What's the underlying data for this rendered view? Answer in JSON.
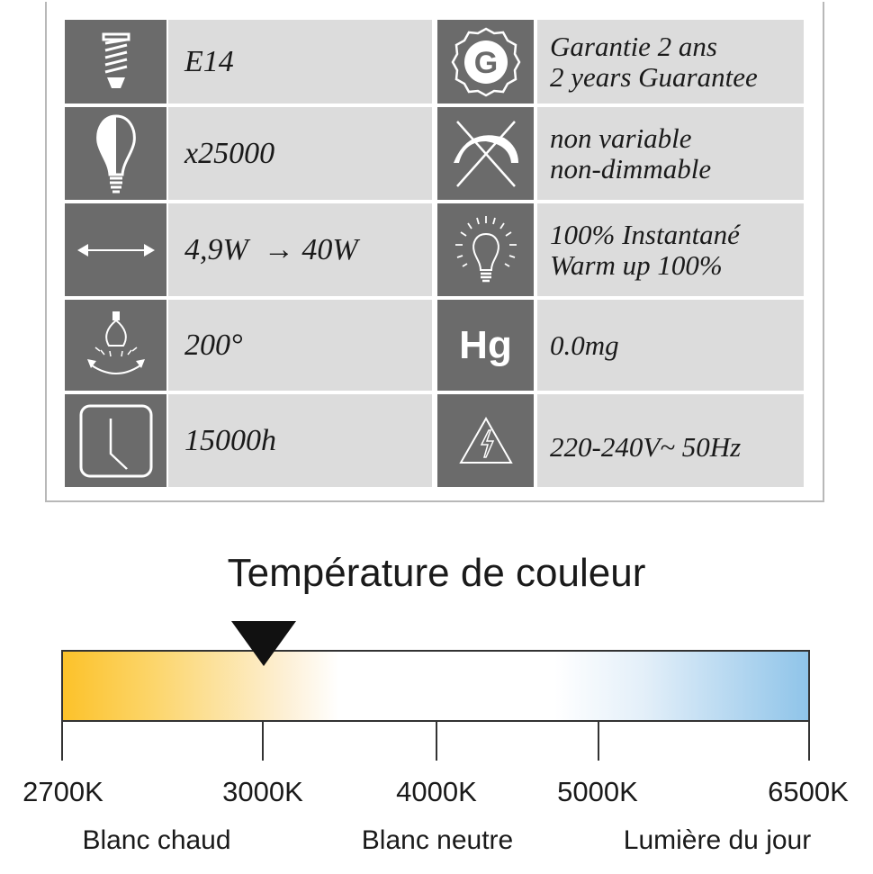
{
  "specs": {
    "left": [
      {
        "icon": "bulb-base-icon",
        "text": [
          "E14"
        ]
      },
      {
        "icon": "bulb-icon",
        "text": [
          "x25000"
        ]
      },
      {
        "icon": "double-arrow-icon",
        "text": [
          "4,9W  → 40W"
        ]
      },
      {
        "icon": "beam-angle-icon",
        "text": [
          "200°"
        ]
      },
      {
        "icon": "clock-icon",
        "text": [
          "15000h"
        ]
      }
    ],
    "right": [
      {
        "icon": "guarantee-seal-icon",
        "icon_text": "G",
        "text": [
          "Garantie 2 ans",
          "2 years Guarantee"
        ]
      },
      {
        "icon": "non-dimmable-icon",
        "text": [
          "non variable",
          "non-dimmable"
        ]
      },
      {
        "icon": "instant-light-bulb-icon",
        "text": [
          "100% Instantané",
          "Warm up 100%"
        ]
      },
      {
        "icon": "mercury-icon",
        "icon_text": "Hg",
        "text": [
          "0.0mg"
        ]
      },
      {
        "icon": "high-voltage-icon",
        "text": [
          "220-240V~ 50Hz"
        ]
      }
    ]
  },
  "color_temp": {
    "title": "Température de couleur",
    "selected": "3000K",
    "ticks": [
      "2700K",
      "3000K",
      "4000K",
      "5000K",
      "6500K"
    ],
    "labels": [
      "Blanc chaud",
      "Blanc neutre",
      "Lumière du jour"
    ],
    "colors": {
      "warm": "#fcc22a",
      "neutral": "#ffffff",
      "daylight": "#8fc4e9",
      "icon_bg": "#6b6b6b",
      "text_bg": "#dcdcdc"
    }
  }
}
